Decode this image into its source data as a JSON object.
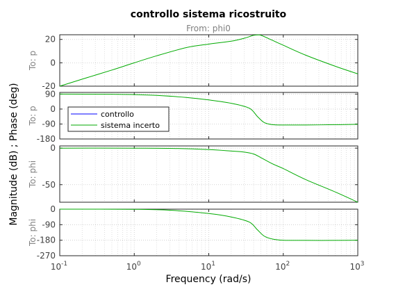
{
  "chart_data": {
    "type": "line",
    "title": "controllo sistema ricostruito",
    "subtitle": "From: phi0",
    "xlabel": "Frequency  (rad/s)",
    "ylabel": "Magnitude (dB) ; Phase (deg)",
    "xscale": "log",
    "xlim": [
      0.1,
      1000
    ],
    "x_ticks": [
      0.1,
      1,
      10,
      100,
      1000
    ],
    "x_tick_labels": [
      {
        "base": "10",
        "exp": "-1"
      },
      {
        "base": "10",
        "exp": "0"
      },
      {
        "base": "10",
        "exp": "1"
      },
      {
        "base": "10",
        "exp": "2"
      },
      {
        "base": "10",
        "exp": "3"
      }
    ],
    "grid": true,
    "legend": {
      "placement": "inside-left of second panel",
      "entries": [
        {
          "name": "controllo",
          "color": "#0000ff"
        },
        {
          "name": "sistema incerto",
          "color": "#00aa00"
        }
      ]
    },
    "series_colors": {
      "controllo": "#0000ff",
      "sistema incerto": "#00aa00"
    },
    "panels": [
      {
        "row_label": "To: p",
        "quantity": "Magnitude (dB)",
        "ylim": [
          -20,
          24
        ],
        "yticks": [
          20,
          0,
          -20
        ],
        "ytick_labels": [
          "20",
          "0",
          "-20"
        ],
        "series": [
          {
            "name": "sistema incerto",
            "x": [
              0.1,
              0.2,
              0.5,
              1,
              2,
              5,
              10,
              20,
              30,
              40,
              48,
              55,
              70,
              100,
              200,
              500,
              1000
            ],
            "y": [
              -20,
              -14,
              -6.2,
              0,
              6,
              13,
              16,
              18.5,
              21,
              23.5,
              23.8,
              22.5,
              19.5,
              15,
              6.5,
              -3,
              -9.5
            ]
          }
        ]
      },
      {
        "row_label": "To: p",
        "quantity": "Phase (deg)",
        "ylim": [
          -180,
          100
        ],
        "yticks": [
          90,
          0,
          -90,
          -180
        ],
        "ytick_labels": [
          "90",
          "0",
          "-90",
          "-180"
        ],
        "series": [
          {
            "name": "sistema incerto",
            "x": [
              0.1,
              0.5,
              1,
              2,
              5,
              10,
              20,
              35,
              45,
              55,
              70,
              100,
              200,
              500,
              1000
            ],
            "y": [
              90,
              89,
              87,
              82,
              70,
              55,
              35,
              5,
              -45,
              -80,
              -93,
              -96,
              -96,
              -94,
              -92
            ]
          }
        ]
      },
      {
        "row_label": "To: phi",
        "quantity": "Magnitude (dB)",
        "ylim": [
          -74,
          3
        ],
        "yticks": [
          0,
          -50
        ],
        "ytick_labels": [
          "0",
          "-50"
        ],
        "series": [
          {
            "name": "sistema incerto",
            "x": [
              0.1,
              1,
              3,
              10,
              20,
              30,
              40,
              50,
              70,
              100,
              200,
              500,
              1000
            ],
            "y": [
              0,
              0,
              -0.3,
              -2,
              -4,
              -5.5,
              -8,
              -13,
              -21,
              -28,
              -43,
              -60,
              -74
            ]
          }
        ]
      },
      {
        "row_label": "To: phi",
        "quantity": "Phase (deg)",
        "ylim": [
          -270,
          0
        ],
        "yticks": [
          0,
          -90,
          -180,
          -270
        ],
        "ytick_labels": [
          "0",
          "-90",
          "-180",
          "-270"
        ],
        "series": [
          {
            "name": "sistema incerto",
            "x": [
              0.1,
              1,
              3,
              10,
              20,
              35,
              45,
              55,
              70,
              100,
              200,
              500,
              1000
            ],
            "y": [
              0,
              -1,
              -6,
              -25,
              -45,
              -75,
              -120,
              -155,
              -172,
              -180,
              -181,
              -181,
              -180
            ]
          }
        ]
      }
    ]
  }
}
